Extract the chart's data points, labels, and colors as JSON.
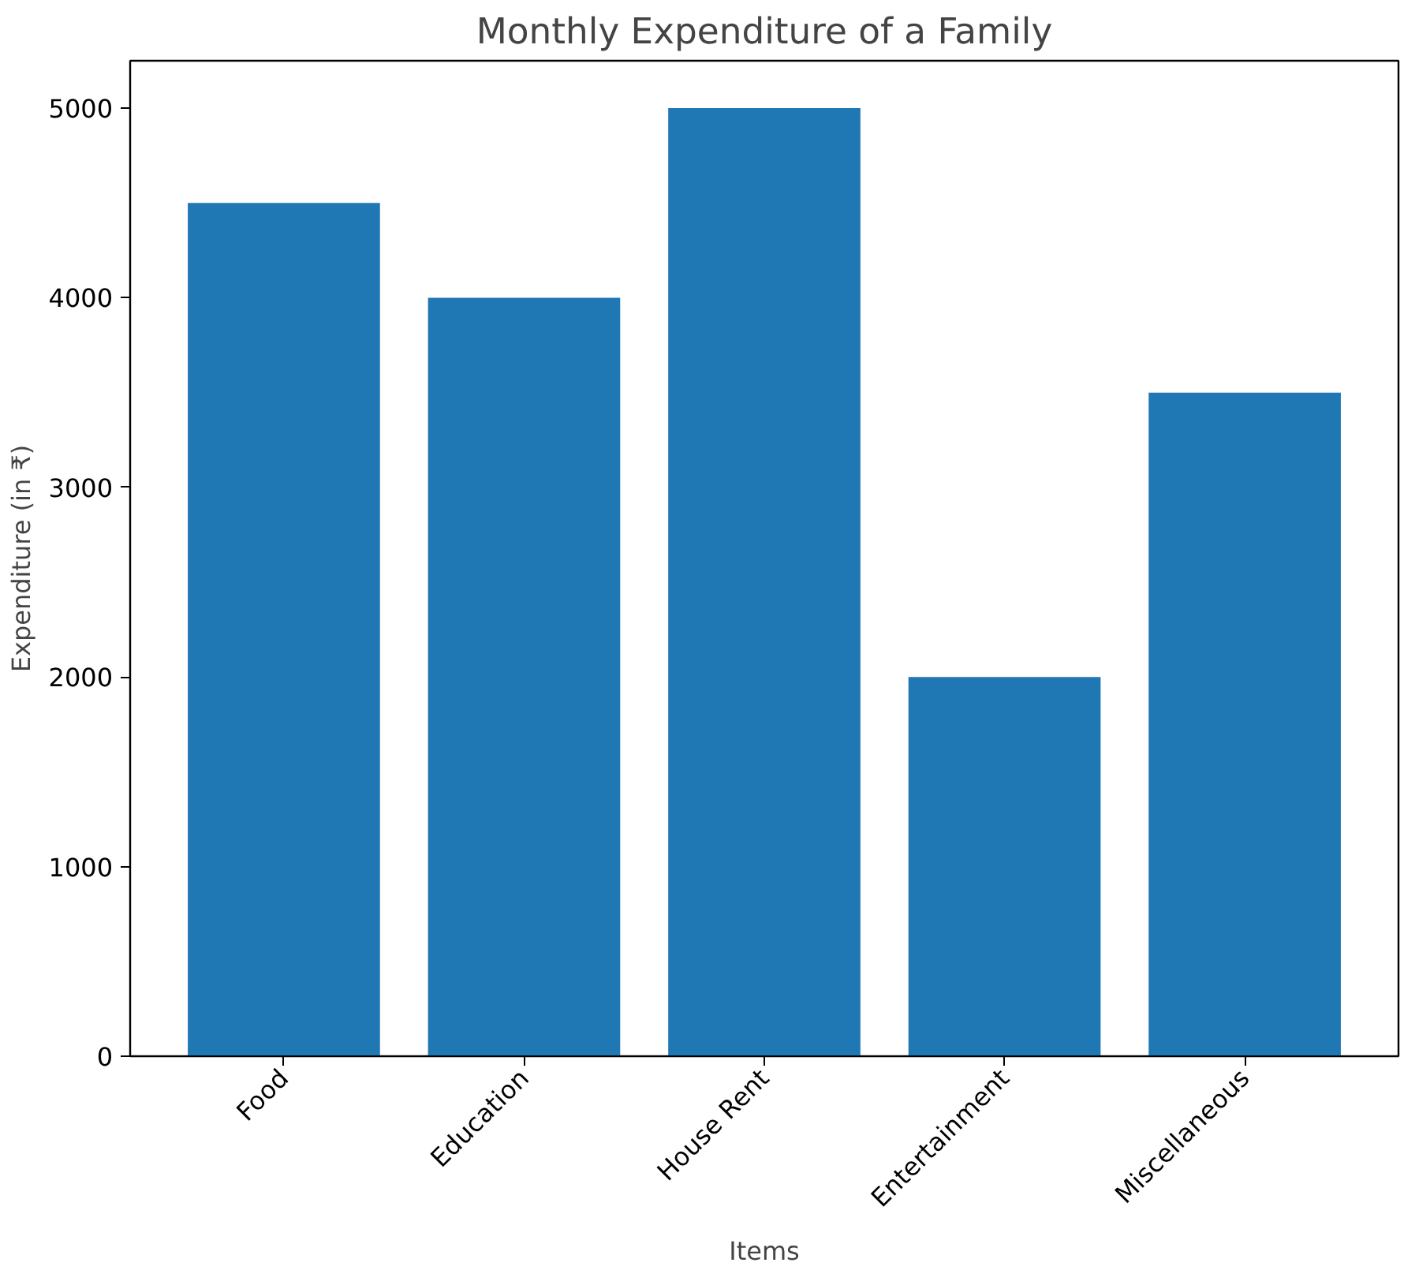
{
  "chart_data": {
    "type": "bar",
    "title": "Monthly Expenditure of a Family",
    "xlabel": "Items",
    "ylabel": "Expenditure (in ₹)",
    "categories": [
      "Food",
      "Education",
      "House Rent",
      "Entertainment",
      "Miscellaneous"
    ],
    "values": [
      4500,
      4000,
      5000,
      2000,
      3500
    ],
    "color": "#1f77b4",
    "ylim": [
      0,
      5250
    ],
    "yticks": [
      0,
      1000,
      2000,
      3000,
      4000,
      5000
    ],
    "grid": false
  }
}
